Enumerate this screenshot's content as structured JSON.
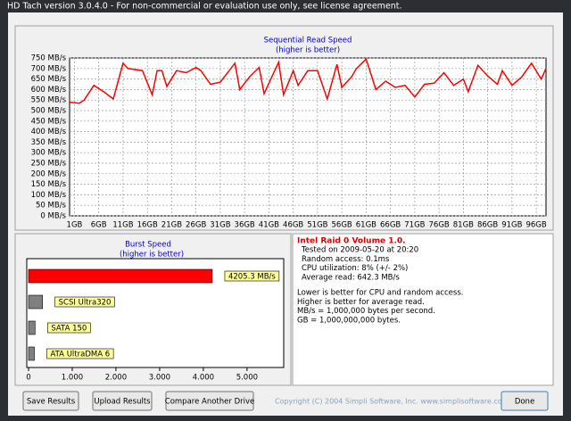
{
  "window_title": "HD Tach version 3.0.4.0  - For non-commercial or evaluation use only, see license agreement.",
  "chart_data": [
    {
      "type": "line",
      "title": "Sequential Read Speed",
      "subtitle": "(higher is better)",
      "x": [
        0,
        2,
        3,
        5,
        7,
        9,
        11,
        12,
        15,
        17,
        18,
        19,
        20,
        22,
        24,
        26,
        27,
        29,
        31,
        34,
        35,
        37,
        39,
        40,
        43,
        44,
        46,
        47,
        49,
        51,
        53,
        55,
        56,
        58,
        59,
        61,
        63,
        65,
        67,
        69,
        71,
        73,
        75,
        77,
        79,
        81,
        82,
        84,
        86,
        88,
        89,
        91,
        93,
        95,
        97,
        98
      ],
      "values": [
        540,
        535,
        550,
        620,
        590,
        555,
        725,
        700,
        690,
        575,
        690,
        690,
        615,
        690,
        680,
        705,
        690,
        625,
        635,
        725,
        600,
        660,
        705,
        580,
        730,
        575,
        690,
        620,
        690,
        690,
        555,
        720,
        610,
        660,
        700,
        745,
        600,
        640,
        610,
        620,
        565,
        625,
        630,
        680,
        620,
        650,
        590,
        715,
        665,
        625,
        690,
        620,
        660,
        725,
        650,
        700
      ],
      "color": "#ff0000",
      "grid": true,
      "xlim": [
        0,
        98
      ],
      "xticks": [
        {
          "value": 1,
          "label": "1GB"
        },
        {
          "value": 6,
          "label": "6GB"
        },
        {
          "value": 11,
          "label": "11GB"
        },
        {
          "value": 16,
          "label": "16GB"
        },
        {
          "value": 21,
          "label": "21GB"
        },
        {
          "value": 26,
          "label": "26GB"
        },
        {
          "value": 31,
          "label": "31GB"
        },
        {
          "value": 36,
          "label": "36GB"
        },
        {
          "value": 41,
          "label": "41GB"
        },
        {
          "value": 46,
          "label": "46GB"
        },
        {
          "value": 51,
          "label": "51GB"
        },
        {
          "value": 56,
          "label": "56GB"
        },
        {
          "value": 61,
          "label": "61GB"
        },
        {
          "value": 66,
          "label": "66GB"
        },
        {
          "value": 71,
          "label": "71GB"
        },
        {
          "value": 76,
          "label": "76GB"
        },
        {
          "value": 81,
          "label": "81GB"
        },
        {
          "value": 86,
          "label": "86GB"
        },
        {
          "value": 91,
          "label": "91GB"
        },
        {
          "value": 96,
          "label": "96GB"
        }
      ],
      "ylim": [
        0,
        750
      ],
      "yticks": [
        {
          "value": 0,
          "label": "0 MB/s"
        },
        {
          "value": 50,
          "label": "50 MB/s"
        },
        {
          "value": 100,
          "label": "100 MB/s"
        },
        {
          "value": 150,
          "label": "150 MB/s"
        },
        {
          "value": 200,
          "label": "200 MB/s"
        },
        {
          "value": 250,
          "label": "250 MB/s"
        },
        {
          "value": 300,
          "label": "300 MB/s"
        },
        {
          "value": 350,
          "label": "350 MB/s"
        },
        {
          "value": 400,
          "label": "400 MB/s"
        },
        {
          "value": 450,
          "label": "450 MB/s"
        },
        {
          "value": 500,
          "label": "500 MB/s"
        },
        {
          "value": 550,
          "label": "550 MB/s"
        },
        {
          "value": 600,
          "label": "600 MB/s"
        },
        {
          "value": 650,
          "label": "650 MB/s"
        },
        {
          "value": 700,
          "label": "700 MB/s"
        },
        {
          "value": 750,
          "label": "750 MB/s"
        }
      ]
    },
    {
      "type": "hbar",
      "title": "Burst Speed",
      "subtitle": "(higher is better)",
      "categories": [
        null,
        "SCSI Ultra320",
        "SATA 150",
        "ATA UltraDMA 6"
      ],
      "values": [
        4205.3,
        320,
        150,
        133
      ],
      "value_labels": [
        "4205.3 MB/s",
        null,
        null,
        null
      ],
      "colors": [
        "#ff0000",
        "#808080",
        "#808080",
        "#808080"
      ],
      "xlim": [
        0,
        5840
      ],
      "xticks": [
        0,
        {
          "value": 1000,
          "label": "1.000"
        },
        {
          "value": 2000,
          "label": "2.000"
        },
        {
          "value": 3000,
          "label": "3.000"
        },
        {
          "value": 4000,
          "label": "4.000"
        },
        {
          "value": 5000,
          "label": "5.000"
        }
      ]
    }
  ],
  "info": {
    "heading": "Intel Raid 0 Volume 1.0.",
    "lines": [
      "Tested on 2009-05-20 at 20:20",
      "Random access: 0.1ms",
      "CPU utilization: 8% (+/- 2%)",
      "Average read: 642.3 MB/s"
    ],
    "notes": [
      "Lower is better for CPU and random access.",
      "Higher is better for average read.",
      "MB/s = 1,000,000 bytes per second.",
      "GB = 1,000,000,000 bytes."
    ]
  },
  "buttons": [
    "Save Results",
    "Upload Results",
    "Compare Another Drive",
    "Done"
  ],
  "copyright": "Copyright (C) 2004 Simpli Software, Inc. www.simplisoftware.com"
}
